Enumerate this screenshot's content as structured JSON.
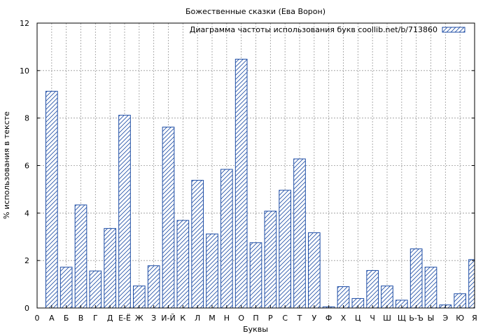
{
  "chart_data": {
    "type": "bar",
    "title": "Божественные сказки (Ева Ворон)",
    "xlabel": "Буквы",
    "ylabel": "% использования в тексте",
    "legend": "Диаграмма частоты использования букв coollib.net/b/713860",
    "legend_position": "top-right",
    "grid": true,
    "ylim": [
      0,
      12
    ],
    "yticks": [
      0,
      2,
      4,
      6,
      8,
      10,
      12
    ],
    "x_origin_label": "0",
    "categories": [
      "А",
      "Б",
      "В",
      "Г",
      "Д",
      "Е-Ё",
      "Ж",
      "З",
      "И-Й",
      "К",
      "Л",
      "М",
      "Н",
      "О",
      "П",
      "Р",
      "С",
      "Т",
      "У",
      "Ф",
      "Х",
      "Ц",
      "Ч",
      "Ш",
      "Щ",
      "Ь-Ъ",
      "Ы",
      "Э",
      "Ю",
      "Я"
    ],
    "values": [
      9.13,
      1.72,
      4.34,
      1.56,
      3.35,
      8.12,
      0.93,
      1.78,
      7.62,
      3.69,
      5.38,
      3.12,
      5.84,
      10.48,
      2.75,
      4.08,
      4.96,
      6.28,
      3.17,
      0.05,
      0.9,
      0.4,
      1.58,
      0.93,
      0.33,
      2.49,
      1.72,
      0.13,
      0.6,
      2.04
    ],
    "colors": {
      "bar_stroke": "#1f4ea6",
      "hatch": "#1f4ea6",
      "grid": "#999999",
      "axis": "#000000"
    }
  }
}
